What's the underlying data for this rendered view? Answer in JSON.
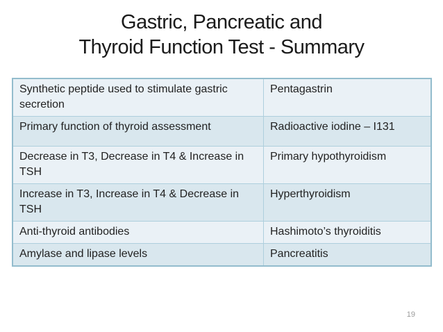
{
  "title": {
    "line1": "Gastric, Pancreatic and",
    "line2": "Thyroid Function Test - Summary"
  },
  "table": {
    "rows": [
      {
        "description": "Synthetic peptide used to stimulate gastric secretion",
        "result": "Pentagastrin"
      },
      {
        "description": "Primary function of thyroid assessment",
        "result": "Radioactive iodine – I131"
      },
      {
        "description": "Decrease in T3, Decrease in T4 & Increase in TSH",
        "result": "Primary hypothyroidism"
      },
      {
        "description": "Increase in T3, Increase in T4 & Decrease in TSH",
        "result": "Hyperthyroidism"
      },
      {
        "description": "Anti-thyroid antibodies",
        "result": "Hashimoto’s thyroiditis"
      },
      {
        "description": "Amylase and lipase levels",
        "result": "Pancreatitis"
      }
    ]
  },
  "page_number": "19",
  "colors": {
    "background": "#ffffff",
    "row_light": "#eaf1f6",
    "row_dark": "#d9e7ee",
    "border_inner": "#aecfdd",
    "border_outer": "#93bccd",
    "title_text": "#1b1b1b",
    "cell_text": "#222222",
    "page_number_text": "#9a9a9a"
  }
}
